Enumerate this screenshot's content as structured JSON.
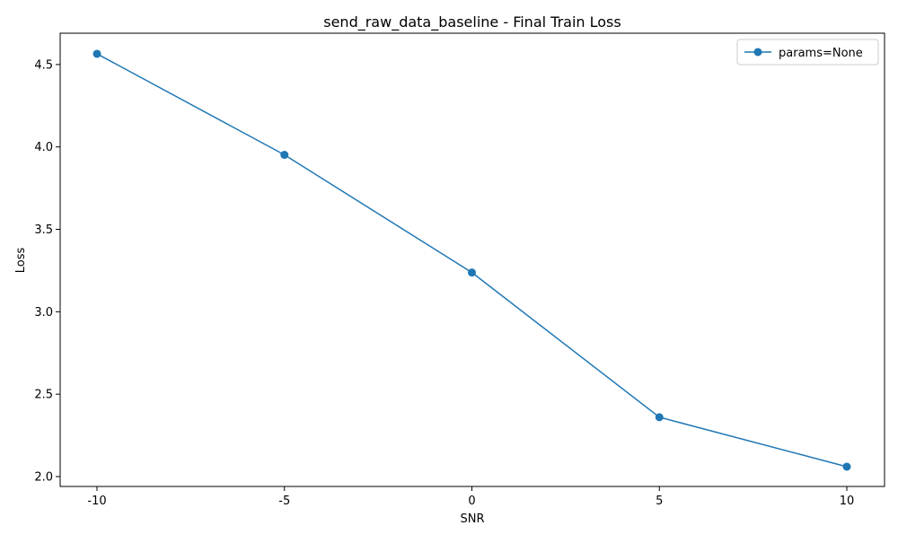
{
  "chart_data": {
    "type": "line",
    "title": "send_raw_data_baseline - Final Train Loss",
    "xlabel": "SNR",
    "ylabel": "Loss",
    "x_tick_labels": [
      "-10",
      "-5",
      "0",
      "5",
      "10"
    ],
    "y_ticks": [
      2.0,
      2.5,
      3.0,
      3.5,
      4.0,
      4.5
    ],
    "y_tick_labels": [
      "2.0",
      "2.5",
      "3.0",
      "3.5",
      "4.0",
      "4.5"
    ],
    "ylim": [
      1.94,
      4.69
    ],
    "grid": false,
    "legend_position": "top-right",
    "series": [
      {
        "name": "params=None",
        "color": "#1f77b4",
        "marker": "circle",
        "x": [
          -10,
          -5,
          0,
          5,
          10
        ],
        "y": [
          4.565,
          3.952,
          3.238,
          2.36,
          2.06
        ]
      }
    ]
  }
}
